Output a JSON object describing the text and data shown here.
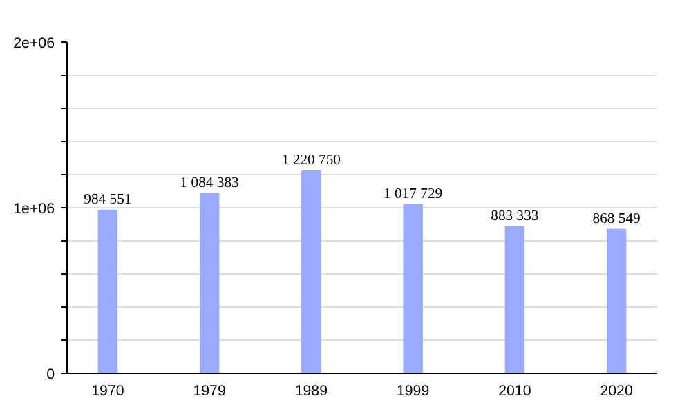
{
  "chart_data": {
    "type": "bar",
    "categories": [
      "1970",
      "1979",
      "1989",
      "1999",
      "2010",
      "2020"
    ],
    "values": [
      984551,
      1084383,
      1220750,
      1017729,
      883333,
      868549
    ],
    "value_labels": [
      "984 551",
      "1 084 383",
      "1 220 750",
      "1 017 729",
      "883 333",
      "868 549"
    ],
    "color": "#99aaff",
    "ylim": [
      0,
      2000000
    ],
    "yticks": [
      {
        "value": 0,
        "label": "0"
      },
      {
        "value": 200000,
        "label": null
      },
      {
        "value": 400000,
        "label": null
      },
      {
        "value": 600000,
        "label": null
      },
      {
        "value": 800000,
        "label": null
      },
      {
        "value": 1000000,
        "label": "1e+06"
      },
      {
        "value": 1200000,
        "label": null
      },
      {
        "value": 1400000,
        "label": null
      },
      {
        "value": 1600000,
        "label": null
      },
      {
        "value": 1800000,
        "label": null
      },
      {
        "value": 2000000,
        "label": "2e+06"
      }
    ],
    "grid": "y"
  }
}
